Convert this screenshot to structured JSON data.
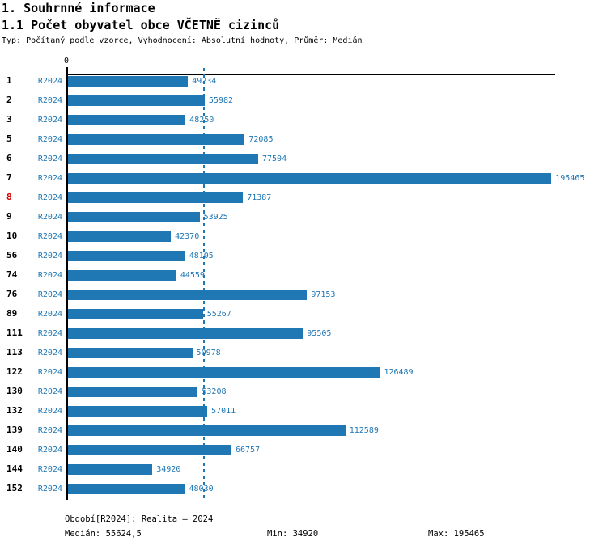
{
  "header": {
    "title1": "1. Souhrnné informace",
    "title2": "1.1 Počet obyvatel obce VČETNĚ cizinců",
    "meta": "Typ: Počítaný podle vzorce, Vyhodnocení: Absolutní hodnoty, Průměr: Medián"
  },
  "chart_data": {
    "type": "bar",
    "orientation": "horizontal",
    "title": "1.1 Počet obyvatel obce VČETNĚ cizinců",
    "axis_zero_label": "0",
    "series_label": "R2024",
    "categories": [
      "1",
      "2",
      "3",
      "5",
      "6",
      "7",
      "8",
      "9",
      "10",
      "56",
      "74",
      "76",
      "89",
      "111",
      "113",
      "122",
      "130",
      "132",
      "139",
      "140",
      "144",
      "152"
    ],
    "values": [
      49234,
      55982,
      48250,
      72085,
      77504,
      195465,
      71387,
      53925,
      42370,
      48105,
      44559,
      97153,
      55267,
      95505,
      50978,
      126489,
      53208,
      57011,
      112589,
      66757,
      34920,
      48030
    ],
    "highlighted_category": "8",
    "median_value": 55624.5,
    "xlim": [
      0,
      197000
    ],
    "grid": false,
    "legend": "none",
    "colors": {
      "bar": "#1f77b4",
      "text_blue": "#1f77b4",
      "row_label": "#000000",
      "highlight": "#d10000",
      "axis": "#000000"
    }
  },
  "footer": {
    "period": "Období[R2024]: Realita – 2024",
    "median": "Medián: 55624,5",
    "min": "Min: 34920",
    "max": "Max: 195465"
  }
}
